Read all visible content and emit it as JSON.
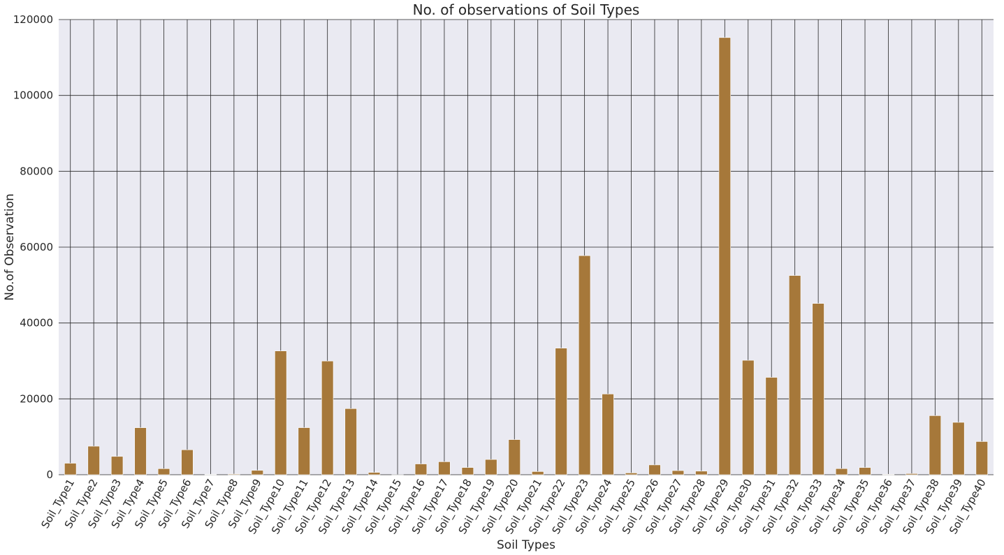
{
  "chart_data": {
    "type": "bar",
    "title": "No. of observations of Soil Types",
    "xlabel": "Soil Types",
    "ylabel": "No.of Observation",
    "ylim": [
      0,
      120000
    ],
    "yticks": [
      0,
      20000,
      40000,
      60000,
      80000,
      100000,
      120000
    ],
    "yticklabels": [
      "0",
      "20000",
      "40000",
      "60000",
      "80000",
      "100000",
      "120000"
    ],
    "grid": true,
    "bar_color": "#a6783a",
    "background_color": "#eaeaf2",
    "grid_color": "#262626",
    "categories": [
      "Soil_Type1",
      "Soil_Type2",
      "Soil_Type3",
      "Soil_Type4",
      "Soil_Type5",
      "Soil_Type6",
      "Soil_Type7",
      "Soil_Type8",
      "Soil_Type9",
      "Soil_Type10",
      "Soil_Type11",
      "Soil_Type12",
      "Soil_Type13",
      "Soil_Type14",
      "Soil_Type15",
      "Soil_Type16",
      "Soil_Type17",
      "Soil_Type18",
      "Soil_Type19",
      "Soil_Type20",
      "Soil_Type21",
      "Soil_Type22",
      "Soil_Type23",
      "Soil_Type24",
      "Soil_Type25",
      "Soil_Type26",
      "Soil_Type27",
      "Soil_Type28",
      "Soil_Type29",
      "Soil_Type30",
      "Soil_Type31",
      "Soil_Type32",
      "Soil_Type33",
      "Soil_Type34",
      "Soil_Type35",
      "Soil_Type36",
      "Soil_Type37",
      "Soil_Type38",
      "Soil_Type39",
      "Soil_Type40"
    ],
    "values": [
      3031,
      7525,
      4823,
      12396,
      1597,
      6575,
      105,
      179,
      1147,
      32634,
      12410,
      29971,
      17431,
      599,
      3,
      2845,
      3422,
      1899,
      4021,
      9259,
      838,
      33373,
      57752,
      21278,
      474,
      2589,
      1086,
      946,
      115247,
      30170,
      25666,
      52519,
      45154,
      1611,
      1891,
      119,
      298,
      15573,
      13806,
      8750
    ]
  }
}
